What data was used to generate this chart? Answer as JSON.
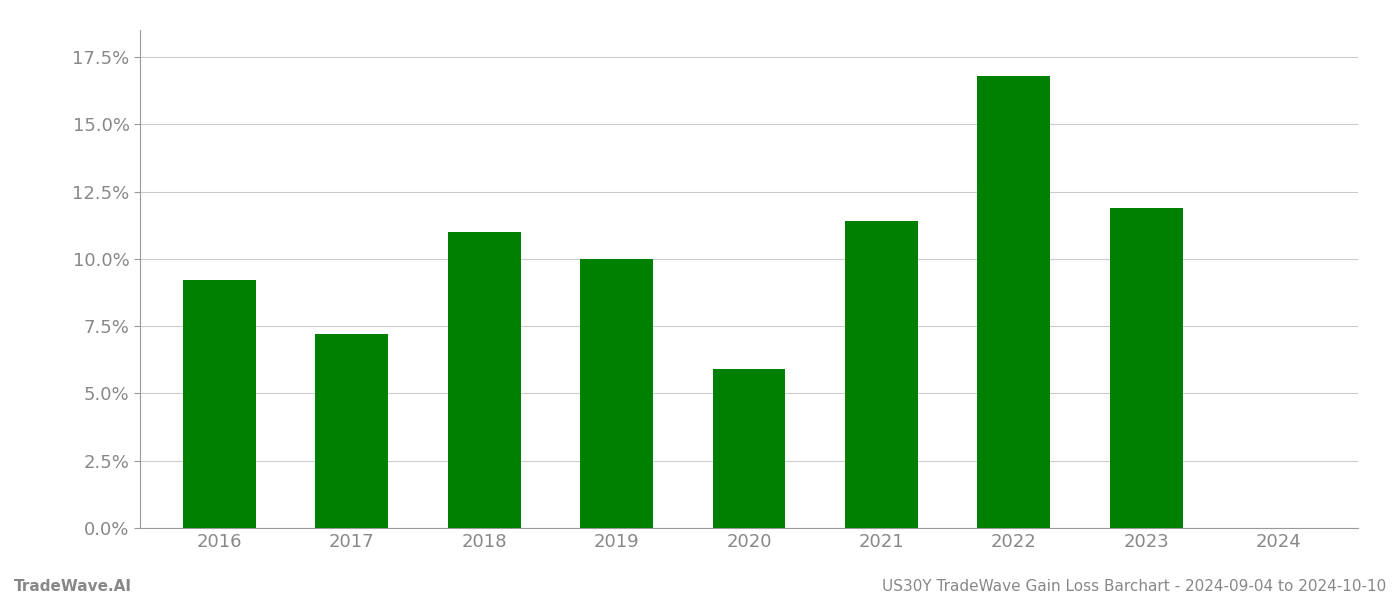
{
  "categories": [
    "2016",
    "2017",
    "2018",
    "2019",
    "2020",
    "2021",
    "2022",
    "2023",
    "2024"
  ],
  "values": [
    0.092,
    0.072,
    0.11,
    0.1,
    0.059,
    0.114,
    0.168,
    0.119,
    null
  ],
  "bar_color": "#008000",
  "background_color": "#ffffff",
  "grid_color": "#cccccc",
  "axis_color": "#999999",
  "tick_label_color": "#888888",
  "ylim": [
    0,
    0.185
  ],
  "yticks": [
    0.0,
    0.025,
    0.05,
    0.075,
    0.1,
    0.125,
    0.15,
    0.175
  ],
  "ytick_labels": [
    "0.0%",
    "2.5%",
    "5.0%",
    "7.5%",
    "10.0%",
    "12.5%",
    "15.0%",
    "17.5%"
  ],
  "footer_left": "TradeWave.AI",
  "footer_right": "US30Y TradeWave Gain Loss Barchart - 2024-09-04 to 2024-10-10",
  "footer_color": "#888888",
  "footer_fontsize": 11,
  "tick_fontsize": 13,
  "bar_width": 0.55
}
